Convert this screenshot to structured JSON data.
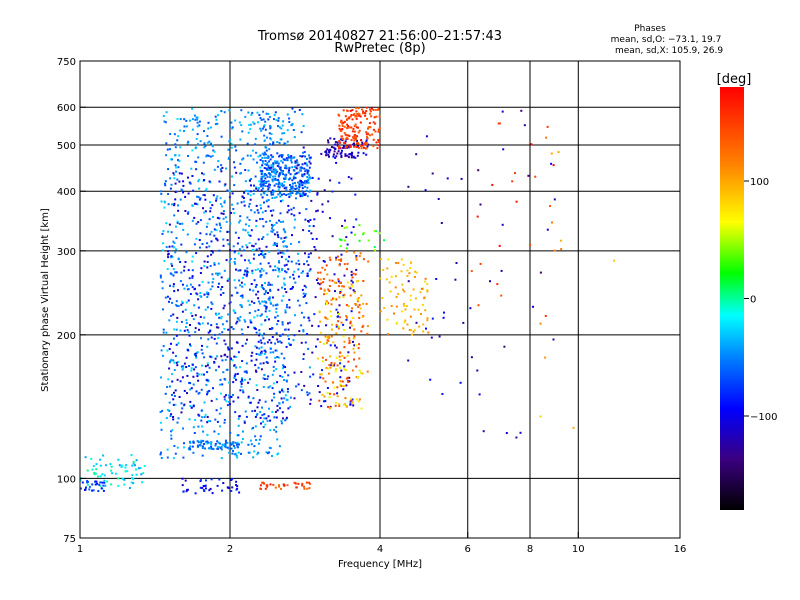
{
  "header": {
    "title_line1": "Tromsø 20140827 21:56:00–21:57:43",
    "title_line2": "RwPretec (8p)"
  },
  "stats": {
    "heading": "Phases",
    "line_o": "mean, sd,O: −73.1, 19.7",
    "line_x": "mean, sd,X: 105.9, 26.9"
  },
  "colorbar": {
    "unit_label": "[deg]",
    "ticks": [
      {
        "value": 100,
        "label": "100"
      },
      {
        "value": 0,
        "label": "0"
      },
      {
        "value": -100,
        "label": "−100"
      }
    ],
    "range": [
      -180,
      180
    ]
  },
  "chart_data": {
    "type": "scatter",
    "title": "Tromsø 20140827 21:56:00–21:57:43",
    "subtitle": "RwPretec (8p)",
    "xlabel": "Frequency [MHz]",
    "ylabel": "Stationary phase Virtual Height [km]",
    "x_scale": "log",
    "y_scale": "log",
    "xlim": [
      1,
      16
    ],
    "ylim": [
      75,
      750
    ],
    "grid": true,
    "x_ticks": [
      {
        "value": 1,
        "label": "1"
      },
      {
        "value": 2,
        "label": "2"
      },
      {
        "value": 4,
        "label": "4"
      },
      {
        "value": 6,
        "label": "6"
      },
      {
        "value": 8,
        "label": "8"
      },
      {
        "value": 10,
        "label": "10"
      },
      {
        "value": 16,
        "label": "16"
      }
    ],
    "x_grid": [
      2,
      4,
      6,
      8,
      10
    ],
    "y_ticks": [
      {
        "value": 75,
        "label": "75"
      },
      {
        "value": 100,
        "label": "100"
      },
      {
        "value": 200,
        "label": "200"
      },
      {
        "value": 300,
        "label": "300"
      },
      {
        "value": 400,
        "label": "400"
      },
      {
        "value": 500,
        "label": "500"
      },
      {
        "value": 600,
        "label": "600"
      },
      {
        "value": 750,
        "label": "750"
      }
    ],
    "y_grid": [
      100,
      200,
      300,
      400,
      500,
      600
    ],
    "color_variable": "phase [deg]",
    "clusters": [
      {
        "fmin": 1.0,
        "fmax": 1.35,
        "hmin": 95,
        "hmax": 112,
        "phase": -20,
        "count": 70
      },
      {
        "fmin": 1.0,
        "fmax": 1.12,
        "hmin": 94,
        "hmax": 99,
        "phase": -80,
        "count": 25
      },
      {
        "fmin": 1.45,
        "fmax": 2.6,
        "hmin": 110,
        "hmax": 600,
        "phase": -45,
        "count": 900
      },
      {
        "fmin": 1.5,
        "fmax": 2.7,
        "hmin": 130,
        "hmax": 450,
        "phase": -100,
        "count": 450
      },
      {
        "fmin": 1.65,
        "fmax": 2.1,
        "hmin": 115,
        "hmax": 120,
        "phase": -55,
        "count": 70
      },
      {
        "fmin": 2.3,
        "fmax": 2.9,
        "hmin": 390,
        "hmax": 480,
        "phase": -60,
        "count": 260
      },
      {
        "fmin": 2.3,
        "fmax": 2.9,
        "hmin": 140,
        "hmax": 600,
        "phase": -55,
        "count": 220
      },
      {
        "fmin": 2.7,
        "fmax": 3.6,
        "hmin": 140,
        "hmax": 500,
        "phase": -105,
        "count": 160
      },
      {
        "fmin": 3.1,
        "fmax": 3.8,
        "hmin": 470,
        "hmax": 520,
        "phase": -115,
        "count": 80
      },
      {
        "fmin": 3.3,
        "fmax": 4.0,
        "hmin": 490,
        "hmax": 600,
        "phase": 150,
        "count": 160
      },
      {
        "fmin": 3.0,
        "fmax": 3.8,
        "hmin": 140,
        "hmax": 300,
        "phase": 130,
        "count": 150
      },
      {
        "fmin": 3.0,
        "fmax": 3.7,
        "hmin": 140,
        "hmax": 260,
        "phase": 80,
        "count": 90
      },
      {
        "fmin": 4.0,
        "fmax": 5.0,
        "hmin": 200,
        "hmax": 290,
        "phase": 95,
        "count": 80
      },
      {
        "fmin": 3.3,
        "fmax": 4.1,
        "hmin": 300,
        "hmax": 340,
        "phase": 30,
        "count": 20
      },
      {
        "fmin": 2.3,
        "fmax": 2.9,
        "hmin": 95,
        "hmax": 98,
        "phase": 145,
        "count": 35
      },
      {
        "fmin": 1.6,
        "fmax": 2.1,
        "hmin": 93,
        "hmax": 100,
        "phase": -90,
        "count": 40
      },
      {
        "fmin": 4.5,
        "fmax": 6.0,
        "hmin": 150,
        "hmax": 560,
        "phase": -110,
        "count": 25
      },
      {
        "fmin": 6.0,
        "fmax": 9.0,
        "hmin": 120,
        "hmax": 600,
        "phase": -120,
        "count": 25
      },
      {
        "fmin": 6.0,
        "fmax": 9.0,
        "hmin": 200,
        "hmax": 560,
        "phase": 160,
        "count": 20
      },
      {
        "fmin": 8.0,
        "fmax": 12.5,
        "hmin": 90,
        "hmax": 600,
        "phase": 100,
        "count": 12
      }
    ]
  }
}
